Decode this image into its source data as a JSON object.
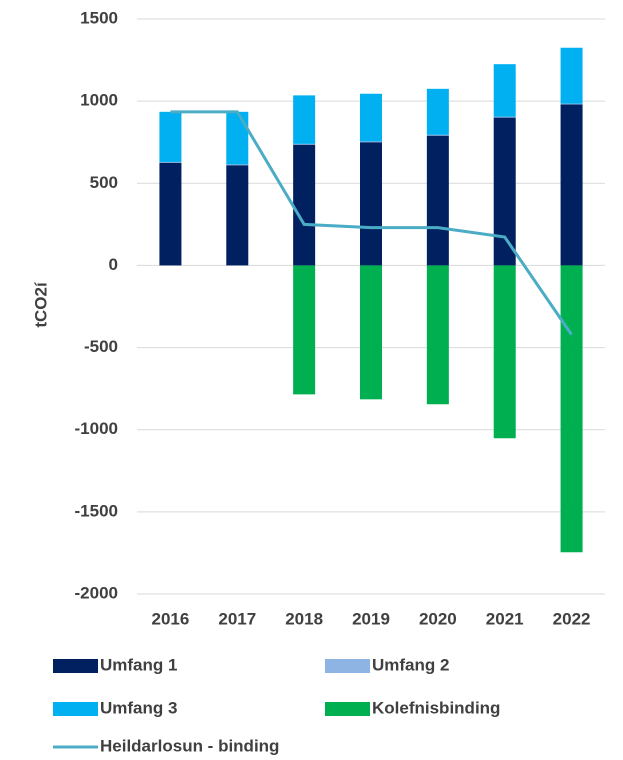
{
  "chart_data": {
    "type": "bar",
    "categories": [
      "2016",
      "2017",
      "2018",
      "2019",
      "2020",
      "2021",
      "2022"
    ],
    "series": [
      {
        "name": "Umfang 1",
        "color": "#002060",
        "values": [
          625,
          610,
          735,
          750,
          790,
          900,
          980
        ]
      },
      {
        "name": "Umfang 2",
        "color": "#8eb4e3",
        "values": [
          5,
          5,
          5,
          5,
          5,
          5,
          5
        ]
      },
      {
        "name": "Umfang 3",
        "color": "#00b0f0",
        "values": [
          305,
          320,
          295,
          290,
          280,
          320,
          340
        ]
      },
      {
        "name": "Kolefnisbinding",
        "color": "#00b050",
        "values": [
          0,
          0,
          -785,
          -815,
          -845,
          -1052,
          -1746
        ]
      },
      {
        "name": "Heildarlosun - binding",
        "color": "#4bacc6",
        "type": "line",
        "values": [
          935,
          935,
          250,
          230,
          230,
          173,
          -421
        ]
      }
    ],
    "y_label": "tCO2í",
    "ylim": [
      -2000,
      1500
    ],
    "yticks": [
      -2000,
      -1500,
      -1000,
      -500,
      0,
      500,
      1000,
      1500
    ],
    "grid": true,
    "legend": "bottom"
  }
}
